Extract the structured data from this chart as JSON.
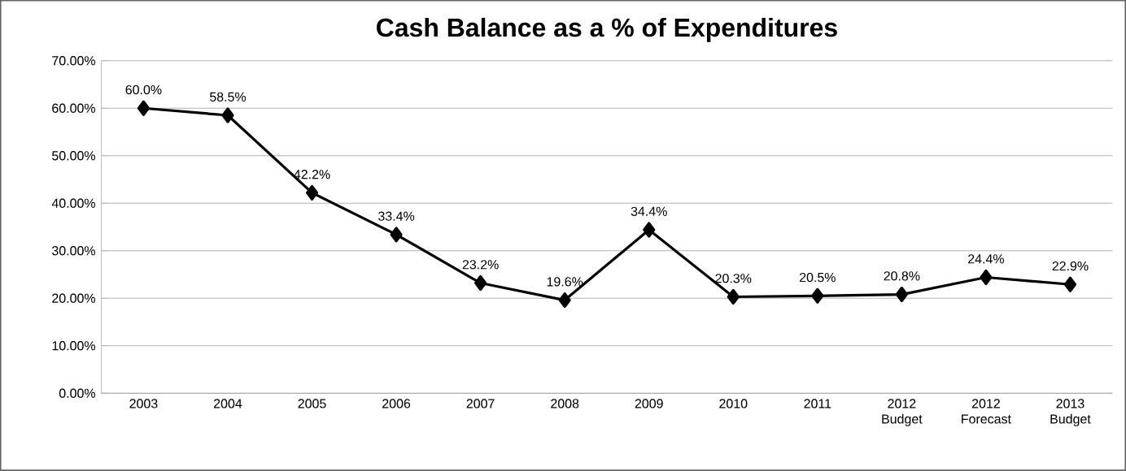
{
  "chart_data": {
    "type": "line",
    "title": "Cash Balance as a % of Expenditures",
    "categories": [
      "2003",
      "2004",
      "2005",
      "2006",
      "2007",
      "2008",
      "2009",
      "2010",
      "2011",
      "2012 Budget",
      "2012 Forecast",
      "2013 Budget"
    ],
    "series": [
      {
        "color": "#000000",
        "values": [
          60.0,
          58.5,
          42.2,
          33.4,
          23.2,
          19.6,
          34.4,
          20.3,
          20.5,
          20.8,
          24.4,
          22.9
        ],
        "value_labels": [
          "60.0%",
          "58.5%",
          "42.2%",
          "33.4%",
          "23.2%",
          "19.6%",
          "34.4%",
          "20.3%",
          "20.5%",
          "20.8%",
          "24.4%",
          "22.9%"
        ]
      }
    ],
    "ylim": [
      0,
      70
    ],
    "yticks": [
      {
        "value": 0,
        "label": "0.00%"
      },
      {
        "value": 10,
        "label": "10.00%"
      },
      {
        "value": 20,
        "label": "20.00%"
      },
      {
        "value": 30,
        "label": "30.00%"
      },
      {
        "value": 40,
        "label": "40.00%"
      },
      {
        "value": 50,
        "label": "50.00%"
      },
      {
        "value": 60,
        "label": "60.00%"
      },
      {
        "value": 70,
        "label": "70.00%"
      }
    ],
    "grid": "y",
    "marker": "diamond",
    "line_style": "solid"
  }
}
